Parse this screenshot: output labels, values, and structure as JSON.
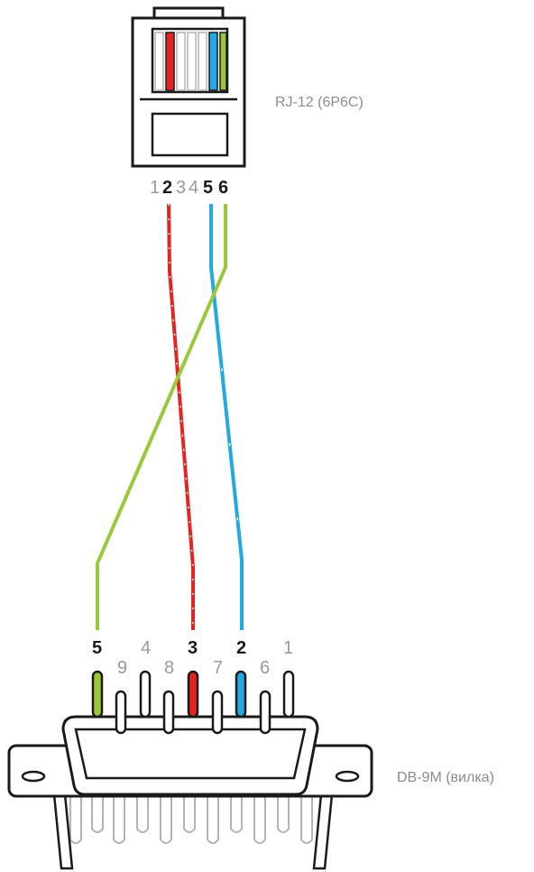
{
  "rj12": {
    "label": "RJ-12 (6P6C)",
    "pins": [
      {
        "num": "1",
        "bold": false
      },
      {
        "num": "2",
        "bold": true
      },
      {
        "num": "3",
        "bold": false
      },
      {
        "num": "4",
        "bold": false
      },
      {
        "num": "5",
        "bold": true
      },
      {
        "num": "6",
        "bold": true
      }
    ]
  },
  "db9": {
    "label": "DB-9M (вилка)",
    "top_row": [
      {
        "num": "5",
        "bold": true
      },
      {
        "num": "4",
        "bold": false
      },
      {
        "num": "3",
        "bold": true
      },
      {
        "num": "2",
        "bold": true
      },
      {
        "num": "1",
        "bold": false
      }
    ],
    "bottom_row": [
      {
        "num": "9",
        "bold": false
      },
      {
        "num": "8",
        "bold": false
      },
      {
        "num": "7",
        "bold": false
      },
      {
        "num": "6",
        "bold": false
      }
    ]
  },
  "colors": {
    "red": "#e52421",
    "blue": "#22a9e1",
    "green": "#9bc83a",
    "gray_wire": "#b4b4b4",
    "outline": "#1a1a1a"
  }
}
